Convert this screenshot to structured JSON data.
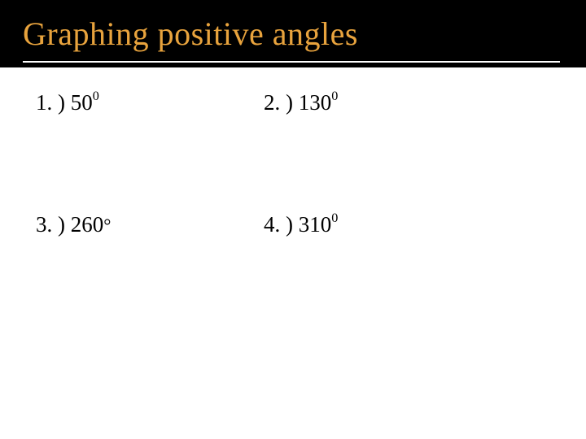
{
  "title": "Graphing positive angles",
  "items": [
    {
      "label": "1. ) 50",
      "degree_mark": "0",
      "degree_style": "sup"
    },
    {
      "label": "2. ) 130",
      "degree_mark": "0",
      "degree_style": "sup"
    },
    {
      "label": "3. ) 260",
      "degree_mark": "°",
      "degree_style": "sym"
    },
    {
      "label": "4. ) 310",
      "degree_mark": "0",
      "degree_style": "sup"
    }
  ],
  "colors": {
    "header_bg": "#000000",
    "title_color": "#e8a33d",
    "divider_color": "#ffffff",
    "body_bg": "#ffffff",
    "text_color": "#000000"
  },
  "typography": {
    "title_fontsize": 40,
    "item_fontsize": 27,
    "font_family": "Georgia, Times New Roman, serif"
  }
}
